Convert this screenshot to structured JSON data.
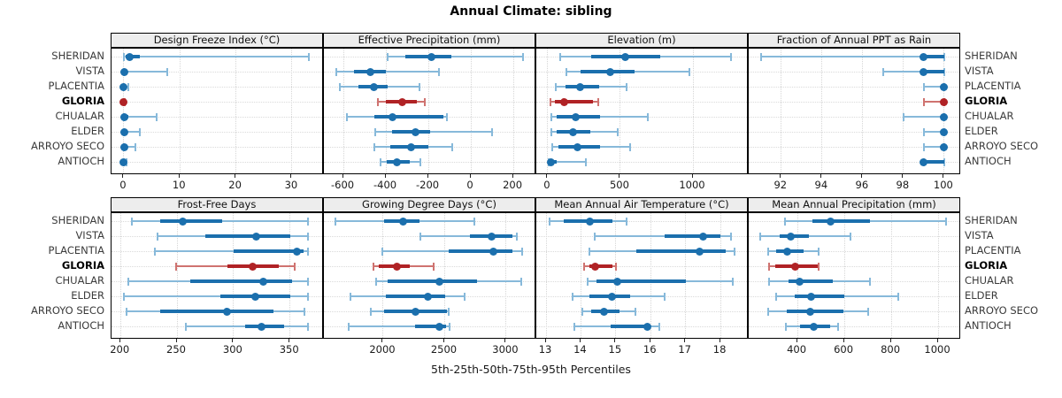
{
  "title": "Annual Climate: sibling",
  "caption": "5th-25th-50th-75th-95th Percentiles",
  "sites": [
    "SHERIDAN",
    "VISTA",
    "PLACENTIA",
    "GLORIA",
    "CHUALAR",
    "ELDER",
    "ARROYO SECO",
    "ANTIOCH"
  ],
  "highlight_site": "GLORIA",
  "colors": {
    "point": "#1b6fad",
    "range": "#87b9da",
    "highlight_point": "#b02225",
    "highlight_range": "#cf7370",
    "strip_bg": "#ededed",
    "grid": "#d6d6d6",
    "border": "#000000"
  },
  "chart_data": {
    "type": "dotplot",
    "note": "horizontal percentile range plots; values per site are [5th,25th,50th,75th,95th] percentiles",
    "percentiles": [
      "5th",
      "25th",
      "50th",
      "75th",
      "95th"
    ],
    "panels": [
      {
        "title": "Design Freeze Index (°C)",
        "xlim": [
          -2.2,
          35.7
        ],
        "ticks": [
          0,
          10,
          20,
          30
        ],
        "data": [
          [
            0,
            0.3,
            1.0,
            2.8,
            33
          ],
          [
            0,
            0,
            0.1,
            0.6,
            7.7
          ],
          [
            0,
            0,
            0,
            0.2,
            0.8
          ],
          [
            0,
            0,
            0,
            0,
            0.1
          ],
          [
            0,
            0,
            0.1,
            0.8,
            5.8
          ],
          [
            0,
            0,
            0.1,
            0.5,
            2.8
          ],
          [
            0,
            0,
            0.1,
            0.4,
            2.0
          ],
          [
            0,
            0,
            0,
            0.1,
            0.5
          ]
        ]
      },
      {
        "title": "Effective Precipitation (mm)",
        "xlim": [
          -692,
          308
        ],
        "ticks": [
          -600,
          -400,
          -200,
          0,
          200
        ],
        "data": [
          [
            -390,
            -310,
            -185,
            -90,
            245
          ],
          [
            -635,
            -550,
            -475,
            -400,
            -150
          ],
          [
            -615,
            -530,
            -455,
            -390,
            -240
          ],
          [
            -437,
            -400,
            -325,
            -255,
            -217
          ],
          [
            -585,
            -455,
            -370,
            -130,
            -113
          ],
          [
            -450,
            -370,
            -260,
            -190,
            100
          ],
          [
            -455,
            -380,
            -283,
            -200,
            -88
          ],
          [
            -425,
            -395,
            -347,
            -288,
            -236
          ]
        ]
      },
      {
        "title": "Elevation (m)",
        "xlim": [
          -79,
          1384
        ],
        "ticks": [
          0,
          500,
          1000
        ],
        "data": [
          [
            85,
            300,
            535,
            775,
            1265
          ],
          [
            130,
            225,
            430,
            600,
            975
          ],
          [
            55,
            120,
            225,
            355,
            540
          ],
          [
            20,
            48,
            110,
            310,
            345
          ],
          [
            25,
            60,
            195,
            360,
            690
          ],
          [
            25,
            60,
            175,
            295,
            480
          ],
          [
            30,
            72,
            205,
            360,
            565
          ],
          [
            5,
            10,
            20,
            60,
            260
          ]
        ]
      },
      {
        "title": "Fraction of Annual PPT as Rain",
        "xlim": [
          90.4,
          100.83
        ],
        "ticks": [
          92,
          94,
          96,
          98,
          100
        ],
        "data": [
          [
            91,
            99,
            99,
            100,
            100
          ],
          [
            97,
            99,
            99,
            100,
            100
          ],
          [
            99,
            100,
            100,
            100,
            100
          ],
          [
            99,
            100,
            100,
            100,
            100
          ],
          [
            98,
            100,
            100,
            100,
            100
          ],
          [
            99,
            100,
            100,
            100,
            100
          ],
          [
            99,
            100,
            100,
            100,
            100
          ],
          [
            99,
            99,
            99,
            100,
            100
          ]
        ]
      },
      {
        "title": "Frost-Free Days",
        "xlim": [
          192,
          380
        ],
        "ticks": [
          200,
          250,
          300,
          350
        ],
        "data": [
          [
            210,
            235,
            255,
            290,
            366
          ],
          [
            233,
            275,
            320,
            350,
            366
          ],
          [
            230,
            300,
            356,
            362,
            366
          ],
          [
            249,
            295,
            317,
            340,
            354
          ],
          [
            207,
            262,
            326,
            352,
            366
          ],
          [
            203,
            288,
            319,
            350,
            366
          ],
          [
            205,
            235,
            294,
            335,
            363
          ],
          [
            258,
            310,
            325,
            345,
            366
          ]
        ]
      },
      {
        "title": "Growing Degree Days (°C)",
        "xlim": [
          1518,
          3245
        ],
        "ticks": [
          2000,
          2500,
          3000
        ],
        "data": [
          [
            1615,
            2005,
            2160,
            2295,
            2740
          ],
          [
            2300,
            2705,
            2885,
            3050,
            3090
          ],
          [
            1990,
            2530,
            2895,
            3050,
            3130
          ],
          [
            1920,
            1965,
            2115,
            2215,
            2410
          ],
          [
            1945,
            2035,
            2460,
            2765,
            3125
          ],
          [
            1735,
            2020,
            2360,
            2505,
            2660
          ],
          [
            1900,
            2005,
            2260,
            2515,
            2535
          ],
          [
            1720,
            2260,
            2455,
            2510,
            2540
          ]
        ]
      },
      {
        "title": "Mean Annual Air Temperature (°C)",
        "xlim": [
          12.72,
          18.81
        ],
        "ticks": [
          13,
          14,
          15,
          16,
          17,
          18
        ],
        "data": [
          [
            13.1,
            13.5,
            14.25,
            14.9,
            15.3
          ],
          [
            14.4,
            16.4,
            17.5,
            18.0,
            18.3
          ],
          [
            14.25,
            15.6,
            17.4,
            18.15,
            18.4
          ],
          [
            14.1,
            14.25,
            14.4,
            14.9,
            15.0
          ],
          [
            14.2,
            14.45,
            15.05,
            17.0,
            18.35
          ],
          [
            13.75,
            14.25,
            14.9,
            15.4,
            16.4
          ],
          [
            14.05,
            14.3,
            14.65,
            15.1,
            15.55
          ],
          [
            13.8,
            14.85,
            15.9,
            16.0,
            16.25
          ]
        ]
      },
      {
        "title": "Mean Annual Precipitation (mm)",
        "xlim": [
          192,
          1098
        ],
        "ticks": [
          400,
          600,
          800,
          1000
        ],
        "data": [
          [
            345,
            465,
            540,
            710,
            1035
          ],
          [
            240,
            325,
            370,
            450,
            625
          ],
          [
            275,
            310,
            355,
            425,
            490
          ],
          [
            280,
            307,
            390,
            487,
            492
          ],
          [
            280,
            360,
            410,
            550,
            710
          ],
          [
            310,
            390,
            460,
            600,
            830
          ],
          [
            275,
            355,
            455,
            595,
            700
          ],
          [
            350,
            410,
            470,
            540,
            575
          ]
        ]
      }
    ]
  }
}
